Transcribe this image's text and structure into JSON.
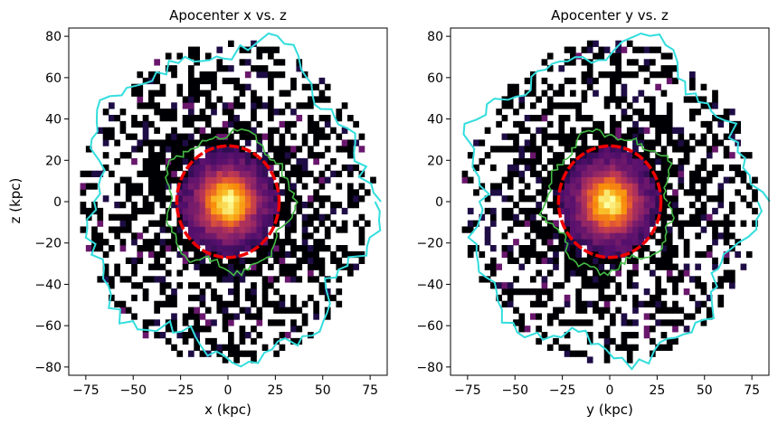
{
  "chart_data": [
    {
      "type": "heatmap",
      "title": "Apocenter x vs. z",
      "xlabel": "x (kpc)",
      "ylabel": "z (kpc)",
      "xlim": [
        -84,
        84
      ],
      "ylim": [
        -84,
        84
      ],
      "xticks": [
        -75,
        -50,
        -25,
        0,
        25,
        50,
        75
      ],
      "yticks": [
        -80,
        -60,
        -40,
        -20,
        0,
        20,
        40,
        60,
        80
      ],
      "xtick_labels": [
        "−75",
        "−50",
        "−25",
        "0",
        "25",
        "50",
        "75"
      ],
      "ytick_labels": [
        "−80",
        "−60",
        "−40",
        "−20",
        "0",
        "20",
        "40",
        "60",
        "80"
      ],
      "colormap": "inferno",
      "peak_center": [
        0,
        0
      ],
      "core_radius": 26,
      "outer_extent": 78,
      "circle": {
        "center": [
          0,
          0
        ],
        "radius": 27,
        "color": "#ee0000",
        "linestyle": "dashed"
      },
      "contours": [
        {
          "color": "#33dddd",
          "radius": 74
        },
        {
          "color": "#44bb44",
          "radius": 33
        }
      ]
    },
    {
      "type": "heatmap",
      "title": "Apocenter y vs. z",
      "xlabel": "y (kpc)",
      "ylabel": "",
      "xlim": [
        -84,
        84
      ],
      "ylim": [
        -84,
        84
      ],
      "xticks": [
        -75,
        -50,
        -25,
        0,
        25,
        50,
        75
      ],
      "yticks": [
        -80,
        -60,
        -40,
        -20,
        0,
        20,
        40,
        60,
        80
      ],
      "xtick_labels": [
        "−75",
        "−50",
        "−25",
        "0",
        "25",
        "50",
        "75"
      ],
      "ytick_labels": [
        "−80",
        "−60",
        "−40",
        "−20",
        "0",
        "20",
        "40",
        "60",
        "80"
      ],
      "colormap": "inferno",
      "peak_center": [
        0,
        0
      ],
      "core_radius": 26,
      "outer_extent": 78,
      "circle": {
        "center": [
          0,
          0
        ],
        "radius": 27,
        "color": "#ee0000",
        "linestyle": "dashed"
      },
      "contours": [
        {
          "color": "#33dddd",
          "radius": 74
        },
        {
          "color": "#44bb44",
          "radius": 33
        }
      ]
    }
  ]
}
